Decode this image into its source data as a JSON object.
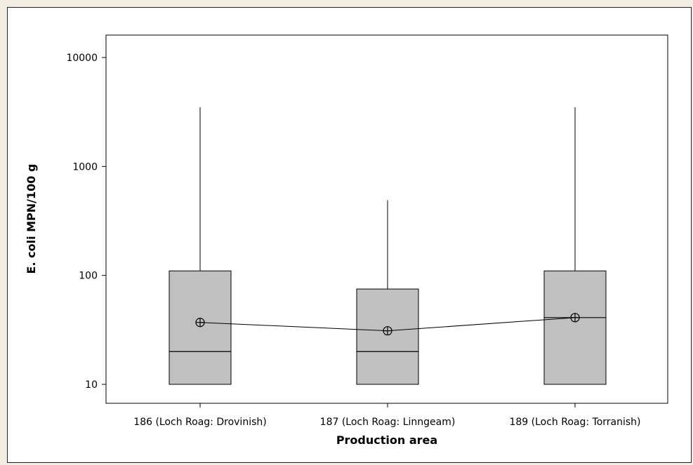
{
  "chart_data": {
    "type": "boxplot",
    "xlabel": "Production area",
    "ylabel": "E. coli MPN/100 g",
    "yscale": "log",
    "ylim": [
      8,
      12000
    ],
    "yticks": [
      {
        "value": 10,
        "label": "10"
      },
      {
        "value": 100,
        "label": "100"
      },
      {
        "value": 1000,
        "label": "1000"
      },
      {
        "value": 10000,
        "label": "10000"
      }
    ],
    "categories": [
      "186 (Loch Roag: Drovinish)",
      "187 (Loch Roag: Linngeam)",
      "189 (Loch Roag: Torranish)"
    ],
    "boxes": [
      {
        "whisker_low": 10,
        "q1": 10,
        "median": 20,
        "q3": 110,
        "whisker_high": 3500,
        "mean": 37
      },
      {
        "whisker_low": 10,
        "q1": 10,
        "median": 20,
        "q3": 75,
        "whisker_high": 490,
        "mean": 31
      },
      {
        "whisker_low": 10,
        "q1": 10,
        "median": 41,
        "q3": 110,
        "whisker_high": 3500,
        "mean": 41
      }
    ],
    "mean_line": true,
    "grid": false,
    "colors": {
      "box_fill": "#c0c0c0",
      "stroke": "#000000",
      "plot_bg": "#ffffff",
      "outer_bg": "#f1ede3"
    }
  }
}
